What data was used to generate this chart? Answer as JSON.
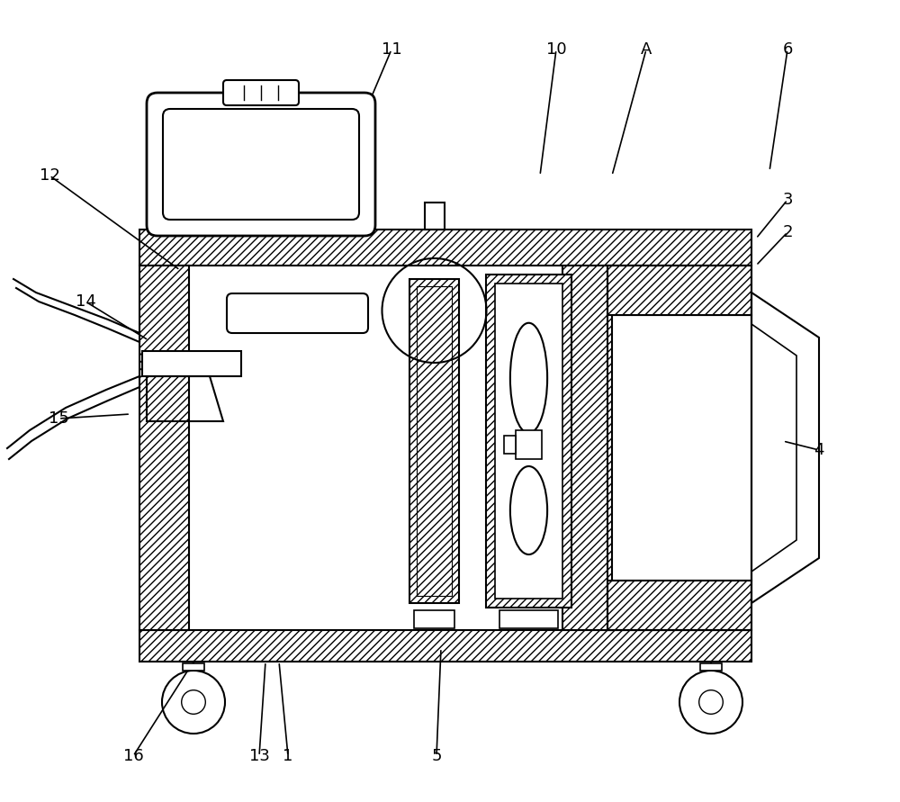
{
  "bg_color": "#ffffff",
  "figsize": [
    10.0,
    8.91
  ],
  "dpi": 100,
  "leaders": [
    [
      "1",
      320,
      840,
      310,
      735
    ],
    [
      "2",
      875,
      258,
      840,
      295
    ],
    [
      "3",
      875,
      222,
      840,
      265
    ],
    [
      "4",
      910,
      500,
      870,
      490
    ],
    [
      "5",
      485,
      840,
      490,
      720
    ],
    [
      "6",
      875,
      55,
      855,
      190
    ],
    [
      "10",
      618,
      55,
      600,
      195
    ],
    [
      "11",
      435,
      55,
      380,
      185
    ],
    [
      "12",
      55,
      195,
      200,
      300
    ],
    [
      "13",
      288,
      840,
      295,
      735
    ],
    [
      "14",
      95,
      335,
      165,
      378
    ],
    [
      "15",
      65,
      465,
      145,
      460
    ],
    [
      "16",
      148,
      840,
      215,
      735
    ],
    [
      "A",
      718,
      55,
      680,
      195
    ]
  ]
}
